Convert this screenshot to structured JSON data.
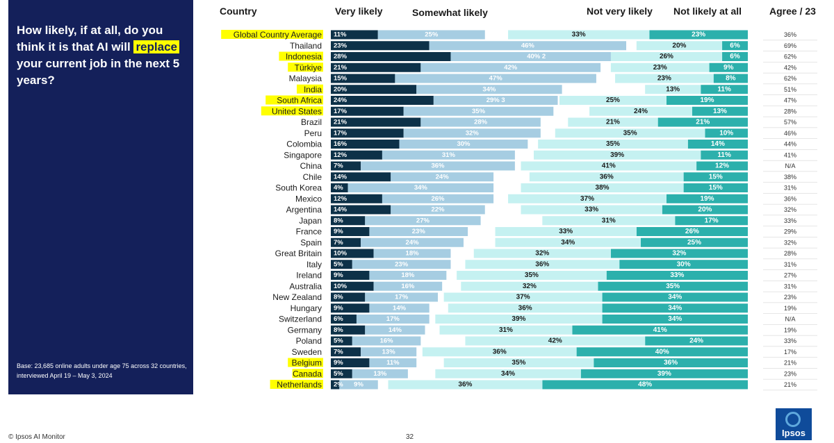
{
  "question": {
    "part1": "How likely, if at all, do you think it is that AI will ",
    "highlight": "replace",
    "part2": " your current job in the next 5 years?"
  },
  "base_note": "Base: 23,685 online adults under age 75 across 32 countries, interviewed April 19 – May 3, 2024",
  "footer": {
    "source": "© Ipsos AI Monitor",
    "page": "32",
    "logo": "Ipsos"
  },
  "colors": {
    "panel": "#14205a",
    "very_likely": "#0d3148",
    "somewhat_likely": "#a6cde2",
    "not_very_likely": "#c5f1f1",
    "not_likely_at_all": "#2cb0ac",
    "highlight": "#ffff00"
  },
  "chart_data": {
    "type": "bar",
    "subtype": "diverging-stacked-horizontal",
    "title": "How likely, if at all, do you think it is that AI will replace your current job in the next 5 years?",
    "headers": {
      "country": "Country",
      "very_likely": "Very likely",
      "somewhat_likely": "Somewhat likely",
      "not_very_likely": "Not very likely",
      "not_likely_at_all": "Not likely at all",
      "agree": "Agree / 23"
    },
    "series_names": [
      "Very likely",
      "Somewhat likely",
      "Not very likely",
      "Not likely at all"
    ],
    "rows": [
      {
        "country": "Global Country Average",
        "vl": 11,
        "sl": 25,
        "nvl": 33,
        "nla": 23,
        "agree": "36%",
        "highlight": true
      },
      {
        "country": "Thailand",
        "vl": 23,
        "sl": 46,
        "nvl": 20,
        "nla": 6,
        "agree": "69%"
      },
      {
        "country": "Indonesia",
        "vl": 28,
        "sl": 40,
        "nvl": 26,
        "nla": 6,
        "agree": "62%",
        "highlight": true,
        "sl_label": "40%  2"
      },
      {
        "country": "Türkiye",
        "vl": 21,
        "sl": 42,
        "nvl": 23,
        "nla": 9,
        "agree": "42%",
        "highlight": true
      },
      {
        "country": "Malaysia",
        "vl": 15,
        "sl": 47,
        "nvl": 23,
        "nla": 8,
        "agree": "62%"
      },
      {
        "country": "India",
        "vl": 20,
        "sl": 34,
        "nvl": 13,
        "nla": 11,
        "agree": "51%",
        "highlight": true
      },
      {
        "country": "South Africa",
        "vl": 24,
        "sl": 29,
        "nvl": 25,
        "nla": 19,
        "agree": "47%",
        "highlight": true,
        "sl_label": "29%  3"
      },
      {
        "country": "United States",
        "vl": 17,
        "sl": 35,
        "nvl": 24,
        "nla": 13,
        "agree": "28%",
        "highlight": true
      },
      {
        "country": "Brazil",
        "vl": 21,
        "sl": 28,
        "nvl": 21,
        "nla": 21,
        "agree": "57%"
      },
      {
        "country": "Peru",
        "vl": 17,
        "sl": 32,
        "nvl": 35,
        "nla": 10,
        "agree": "46%"
      },
      {
        "country": "Colombia",
        "vl": 16,
        "sl": 30,
        "nvl": 35,
        "nla": 14,
        "agree": "44%"
      },
      {
        "country": "Singapore",
        "vl": 12,
        "sl": 31,
        "nvl": 39,
        "nla": 11,
        "agree": "41%"
      },
      {
        "country": "China",
        "vl": 7,
        "sl": 36,
        "nvl": 41,
        "nla": 12,
        "agree": "N/A"
      },
      {
        "country": "Chile",
        "vl": 14,
        "sl": 24,
        "nvl": 36,
        "nla": 15,
        "agree": "38%"
      },
      {
        "country": "South Korea",
        "vl": 4,
        "sl": 34,
        "nvl": 38,
        "nla": 15,
        "agree": "31%"
      },
      {
        "country": "Mexico",
        "vl": 12,
        "sl": 26,
        "nvl": 37,
        "nla": 19,
        "agree": "36%"
      },
      {
        "country": "Argentina",
        "vl": 14,
        "sl": 22,
        "nvl": 33,
        "nla": 20,
        "agree": "32%"
      },
      {
        "country": "Japan",
        "vl": 8,
        "sl": 27,
        "nvl": 31,
        "nla": 17,
        "agree": "33%"
      },
      {
        "country": "France",
        "vl": 9,
        "sl": 23,
        "nvl": 33,
        "nla": 26,
        "agree": "29%"
      },
      {
        "country": "Spain",
        "vl": 7,
        "sl": 24,
        "nvl": 34,
        "nla": 25,
        "agree": "32%"
      },
      {
        "country": "Great Britain",
        "vl": 10,
        "sl": 18,
        "nvl": 32,
        "nla": 32,
        "agree": "28%"
      },
      {
        "country": "Italy",
        "vl": 5,
        "sl": 23,
        "nvl": 36,
        "nla": 30,
        "agree": "31%"
      },
      {
        "country": "Ireland",
        "vl": 9,
        "sl": 18,
        "nvl": 35,
        "nla": 33,
        "agree": "27%"
      },
      {
        "country": "Australia",
        "vl": 10,
        "sl": 16,
        "nvl": 32,
        "nla": 35,
        "agree": "31%"
      },
      {
        "country": "New Zealand",
        "vl": 8,
        "sl": 17,
        "nvl": 37,
        "nla": 34,
        "agree": "23%"
      },
      {
        "country": "Hungary",
        "vl": 9,
        "sl": 14,
        "nvl": 36,
        "nla": 34,
        "agree": "19%"
      },
      {
        "country": "Switzerland",
        "vl": 6,
        "sl": 17,
        "nvl": 39,
        "nla": 34,
        "agree": "N/A"
      },
      {
        "country": "Germany",
        "vl": 8,
        "sl": 14,
        "nvl": 31,
        "nla": 41,
        "agree": "19%"
      },
      {
        "country": "Poland",
        "vl": 5,
        "sl": 16,
        "nvl": 42,
        "nla": 24,
        "agree": "33%"
      },
      {
        "country": "Sweden",
        "vl": 7,
        "sl": 13,
        "nvl": 36,
        "nla": 40,
        "agree": "17%"
      },
      {
        "country": "Belgium",
        "vl": 9,
        "sl": 11,
        "nvl": 35,
        "nla": 36,
        "agree": "21%",
        "highlight": true
      },
      {
        "country": "Canada",
        "vl": 5,
        "sl": 13,
        "nvl": 34,
        "nla": 39,
        "agree": "23%",
        "highlight": true
      },
      {
        "country": "Netherlands",
        "vl": 2,
        "sl": 9,
        "nvl": 36,
        "nla": 48,
        "agree": "21%",
        "highlight": true
      }
    ]
  }
}
